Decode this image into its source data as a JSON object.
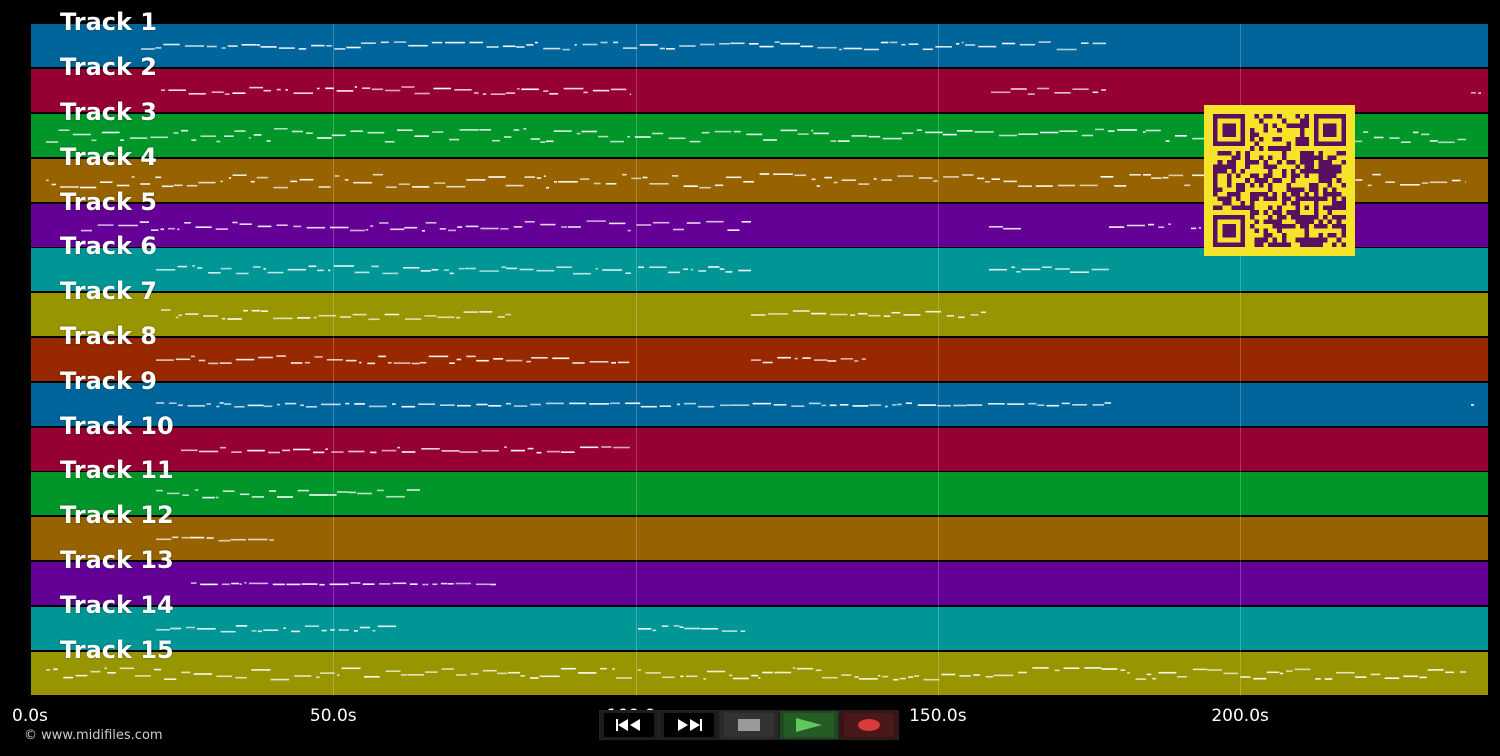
{
  "tracks": [
    {
      "label": "Track 1",
      "color": "#00659a"
    },
    {
      "label": "Track 2",
      "color": "#970032"
    },
    {
      "label": "Track 3",
      "color": "#00962a"
    },
    {
      "label": "Track 4",
      "color": "#976300"
    },
    {
      "label": "Track 5",
      "color": "#640096"
    },
    {
      "label": "Track 6",
      "color": "#009696"
    },
    {
      "label": "Track 7",
      "color": "#979600"
    },
    {
      "label": "Track 8",
      "color": "#972800"
    },
    {
      "label": "Track 9",
      "color": "#00659a"
    },
    {
      "label": "Track 10",
      "color": "#970032"
    },
    {
      "label": "Track 11",
      "color": "#00962a"
    },
    {
      "label": "Track 12",
      "color": "#976300"
    },
    {
      "label": "Track 13",
      "color": "#640096"
    },
    {
      "label": "Track 14",
      "color": "#009696"
    },
    {
      "label": "Track 15",
      "color": "#979600"
    }
  ],
  "timeline": {
    "ticks": [
      "0.0s",
      "50.0s",
      "100.0s",
      "150.0s",
      "200.0s"
    ],
    "tick_values": [
      0,
      50,
      100,
      150,
      200
    ],
    "max_seconds": 241
  },
  "copyright": "© www.midifiles.com",
  "controls": {
    "icons": [
      "rewind-icon",
      "fast-forward-icon",
      "stop-icon",
      "play-icon",
      "record-icon"
    ],
    "play_color": "#5fc85f",
    "record_color": "#d93a3a",
    "stop_color": "#9a9a9a"
  },
  "qr_colors": {
    "background": "#f5e42a",
    "foreground": "#5a1060"
  }
}
